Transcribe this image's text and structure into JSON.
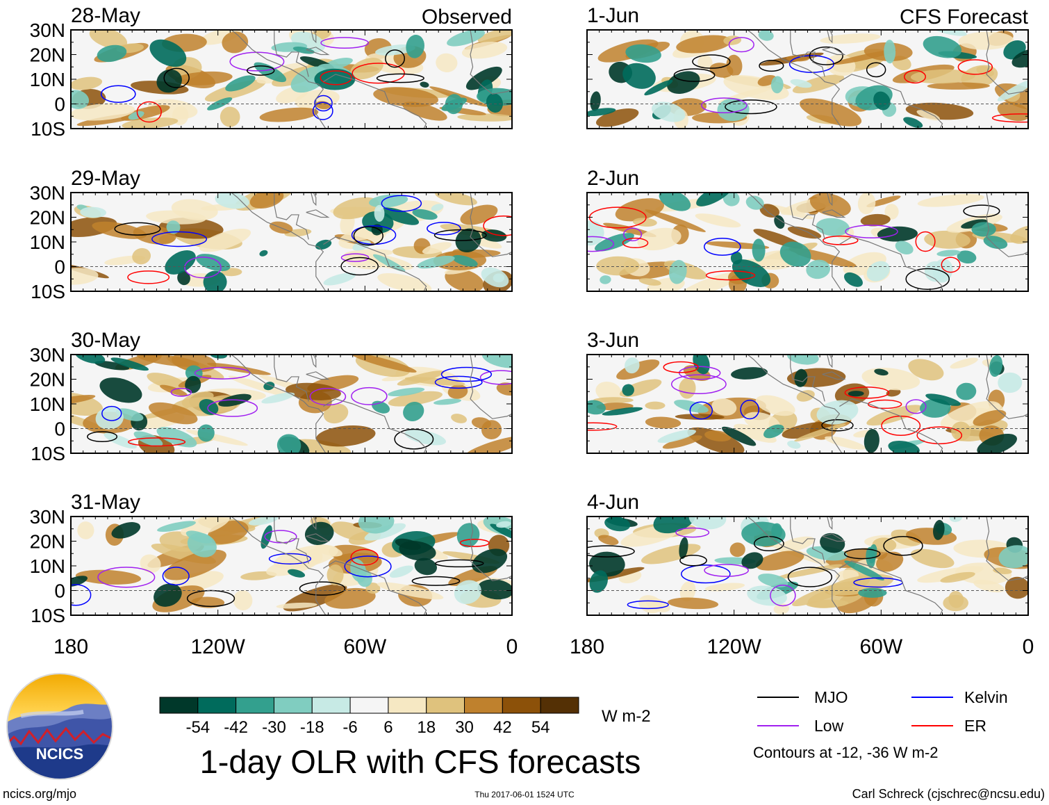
{
  "title": "1-day OLR with CFS forecasts",
  "footer": {
    "left": "ncics.org/mjo",
    "center": "Thu 2017-06-01 1524 UTC",
    "right": "Carl Schreck (cjschrec@ncsu.edu)"
  },
  "logo": {
    "text": "NCICS"
  },
  "column_headers": {
    "left": "Observed",
    "right": "CFS Forecast"
  },
  "colorbar": {
    "units": "W m-2",
    "tick_labels": [
      "-54",
      "-42",
      "-30",
      "-18",
      "-6",
      "6",
      "18",
      "30",
      "42",
      "54"
    ],
    "colors": [
      "#00382a",
      "#006b5c",
      "#33a08e",
      "#80cdc0",
      "#c7eae5",
      "#f5f5f5",
      "#f6e8c3",
      "#dfc27d",
      "#bf812d",
      "#8c5109",
      "#543005"
    ]
  },
  "legend": {
    "entries": [
      {
        "label": "MJO",
        "color": "#000000"
      },
      {
        "label": "Kelvin",
        "color": "#0000ff"
      },
      {
        "label": "Low",
        "color": "#a020f0"
      },
      {
        "label": "ER",
        "color": "#ff0000"
      }
    ],
    "note": "Contours at -12, -36 W m-2"
  },
  "chart_data": {
    "type": "heatmap",
    "variable": "OLR anomaly",
    "units": "W m-2",
    "xlim": [
      -180,
      0
    ],
    "ylim": [
      -10,
      30
    ],
    "x_ticks": [
      -180,
      -120,
      -60,
      0
    ],
    "x_tick_labels": [
      "180",
      "120W",
      "60W",
      "0"
    ],
    "y_ticks": [
      30,
      20,
      10,
      0,
      -10
    ],
    "y_tick_labels": [
      "30N",
      "20N",
      "10N",
      "0",
      "10S"
    ],
    "contour_levels": [
      -12,
      -36
    ],
    "panels": [
      {
        "date": "28-May",
        "source": "Observed"
      },
      {
        "date": "29-May",
        "source": "Observed"
      },
      {
        "date": "30-May",
        "source": "Observed"
      },
      {
        "date": "31-May",
        "source": "Observed"
      },
      {
        "date": "1-Jun",
        "source": "CFS Forecast"
      },
      {
        "date": "2-Jun",
        "source": "CFS Forecast"
      },
      {
        "date": "3-Jun",
        "source": "CFS Forecast"
      },
      {
        "date": "4-Jun",
        "source": "CFS Forecast"
      }
    ]
  }
}
